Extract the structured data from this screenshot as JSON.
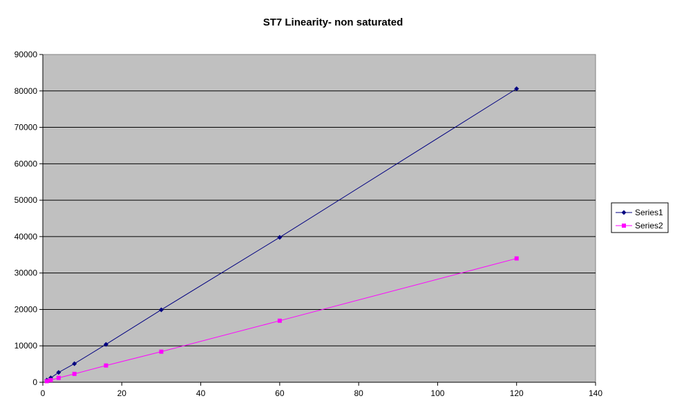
{
  "chart_data": {
    "type": "line",
    "title": "ST7 Linearity- non saturated",
    "xlabel": "",
    "ylabel": "",
    "xlim": [
      0,
      140
    ],
    "ylim": [
      0,
      90000
    ],
    "x_ticks": [
      0,
      20,
      40,
      60,
      80,
      100,
      120,
      140
    ],
    "y_ticks": [
      0,
      10000,
      20000,
      30000,
      40000,
      50000,
      60000,
      70000,
      80000,
      90000
    ],
    "grid": "horizontal",
    "legend_position": "right",
    "series": [
      {
        "name": "Series1",
        "color": "#000080",
        "marker": "diamond",
        "x": [
          1,
          2,
          4,
          8,
          16,
          30,
          60,
          120
        ],
        "y": [
          600,
          1200,
          2700,
          5100,
          10400,
          19900,
          39800,
          80600
        ]
      },
      {
        "name": "Series2",
        "color": "#ff00ff",
        "marker": "square",
        "x": [
          1,
          2,
          4,
          8,
          16,
          30,
          60,
          120
        ],
        "y": [
          300,
          600,
          1200,
          2300,
          4600,
          8400,
          16900,
          34000
        ]
      }
    ]
  }
}
